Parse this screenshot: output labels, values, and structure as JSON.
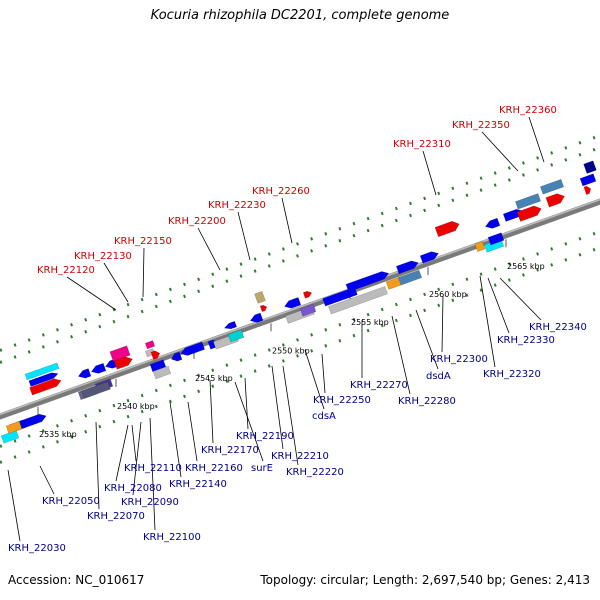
{
  "title": "Kocuria rhizophila DC2201, complete genome",
  "footer": {
    "accession": "Accession: NC_010617",
    "info": "Topology: circular; Length: 2,697,540 bp; Genes: 2,413"
  },
  "colors": {
    "red_label": "#d00000",
    "blue_label": "#00008b",
    "backbone": "#7a7a7a",
    "dots": "#2e7d2e"
  },
  "scale_ticks": [
    {
      "label": "2535 kbp",
      "t": 0.34
    },
    {
      "label": "2540 kbp",
      "t": 0.32
    },
    {
      "label": "2545 kbp",
      "t": 0.3
    },
    {
      "label": "2550 kbp",
      "t": 0.33
    },
    {
      "label": "2555 kbp",
      "t": 0.32
    },
    {
      "label": "2560 kbp",
      "t": 0.31
    },
    {
      "label": "2565 kbp",
      "t": 0.3
    }
  ],
  "upper_labels": [
    {
      "text": "KRH_22120"
    },
    {
      "text": "KRH_22130"
    },
    {
      "text": "KRH_22150"
    },
    {
      "text": "KRH_22200"
    },
    {
      "text": "KRH_22230"
    },
    {
      "text": "KRH_22260"
    },
    {
      "text": "KRH_22310"
    },
    {
      "text": "KRH_22350"
    },
    {
      "text": "KRH_22360"
    }
  ],
  "lower_labels": [
    {
      "text": "KRH_22030"
    },
    {
      "text": "KRH_22050"
    },
    {
      "text": "KRH_22070"
    },
    {
      "text": "KRH_22080"
    },
    {
      "text": "KRH_22090"
    },
    {
      "text": "KRH_22100"
    },
    {
      "text": "KRH_22110"
    },
    {
      "text": "KRH_22140"
    },
    {
      "text": "KRH_22160"
    },
    {
      "text": "KRH_22170"
    },
    {
      "text": "surE"
    },
    {
      "text": "KRH_22190"
    },
    {
      "text": "KRH_22210"
    },
    {
      "text": "KRH_22220"
    },
    {
      "text": "cdsA"
    },
    {
      "text": "KRH_22250"
    },
    {
      "text": "KRH_22270"
    },
    {
      "text": "KRH_22280"
    },
    {
      "text": "dsdA"
    },
    {
      "text": "KRH_22300"
    },
    {
      "text": "KRH_22320"
    },
    {
      "text": "KRH_22330"
    },
    {
      "text": "KRH_22340"
    }
  ]
}
